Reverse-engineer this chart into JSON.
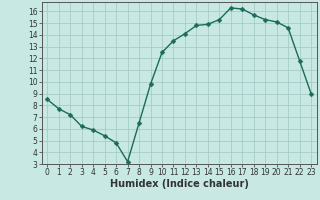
{
  "x": [
    0,
    1,
    2,
    3,
    4,
    5,
    6,
    7,
    8,
    9,
    10,
    11,
    12,
    13,
    14,
    15,
    16,
    17,
    18,
    19,
    20,
    21,
    22,
    23
  ],
  "y": [
    8.5,
    7.7,
    7.2,
    6.2,
    5.9,
    5.4,
    4.8,
    3.2,
    6.5,
    9.8,
    12.5,
    13.5,
    14.1,
    14.8,
    14.9,
    15.3,
    16.3,
    16.2,
    15.7,
    15.3,
    15.1,
    14.6,
    11.8,
    9.0
  ],
  "line_color": "#1b6b58",
  "marker": "D",
  "markersize": 2.5,
  "linewidth": 1.0,
  "background_color": "#c8e8e4",
  "grid_color": "#a0c8c4",
  "xlabel": "Humidex (Indice chaleur)",
  "xlabel_fontsize": 7,
  "xlim": [
    -0.5,
    23.5
  ],
  "ylim": [
    3,
    16.8
  ],
  "yticks": [
    3,
    4,
    5,
    6,
    7,
    8,
    9,
    10,
    11,
    12,
    13,
    14,
    15,
    16
  ],
  "xticks": [
    0,
    1,
    2,
    3,
    4,
    5,
    6,
    7,
    8,
    9,
    10,
    11,
    12,
    13,
    14,
    15,
    16,
    17,
    18,
    19,
    20,
    21,
    22,
    23
  ],
  "tick_fontsize": 5.5,
  "axis_color": "#333333",
  "spine_color": "#555555"
}
